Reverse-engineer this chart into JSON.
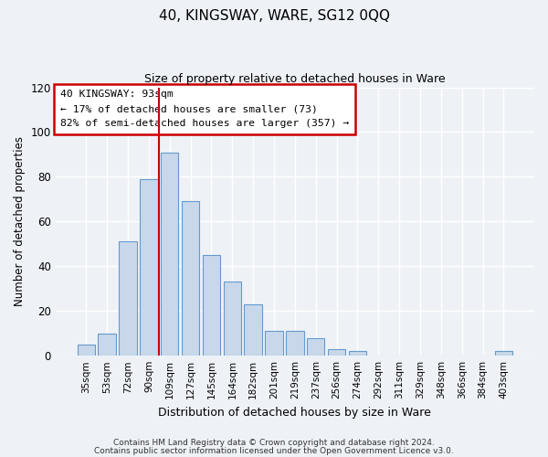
{
  "title": "40, KINGSWAY, WARE, SG12 0QQ",
  "subtitle": "Size of property relative to detached houses in Ware",
  "xlabel": "Distribution of detached houses by size in Ware",
  "ylabel": "Number of detached properties",
  "bar_labels": [
    "35sqm",
    "53sqm",
    "72sqm",
    "90sqm",
    "109sqm",
    "127sqm",
    "145sqm",
    "164sqm",
    "182sqm",
    "201sqm",
    "219sqm",
    "237sqm",
    "256sqm",
    "274sqm",
    "292sqm",
    "311sqm",
    "329sqm",
    "348sqm",
    "366sqm",
    "384sqm",
    "403sqm"
  ],
  "bar_heights": [
    5,
    10,
    51,
    79,
    91,
    69,
    45,
    33,
    23,
    11,
    11,
    8,
    3,
    2,
    0,
    0,
    0,
    0,
    0,
    0,
    2
  ],
  "bar_color": "#c8d8ea",
  "bar_edge_color": "#6699cc",
  "vline_color": "#cc0000",
  "vline_x": 3.5,
  "annotation_box_text": "40 KINGSWAY: 93sqm\n← 17% of detached houses are smaller (73)\n82% of semi-detached houses are larger (357) →",
  "annotation_box_fc": "white",
  "annotation_box_ec": "#cc0000",
  "ylim": [
    0,
    120
  ],
  "yticks": [
    0,
    20,
    40,
    60,
    80,
    100,
    120
  ],
  "footer_line1": "Contains HM Land Registry data © Crown copyright and database right 2024.",
  "footer_line2": "Contains public sector information licensed under the Open Government Licence v3.0.",
  "bg_color": "#eef2f7",
  "grid_color": "white"
}
